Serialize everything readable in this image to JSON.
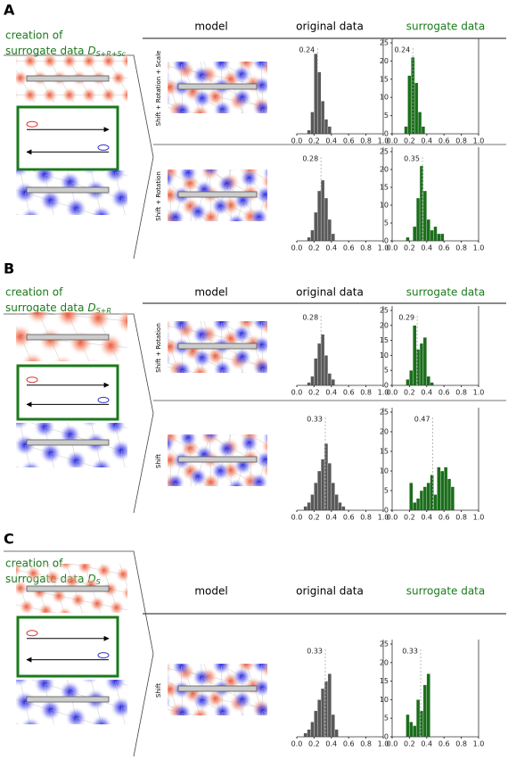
{
  "histogram_axes": {
    "xlim": [
      0,
      1
    ],
    "xticks": [
      {
        "value": 0,
        "label": "0.0"
      },
      0.2,
      0.4,
      0.6,
      0.8,
      {
        "value": 1,
        "label": "1.0"
      }
    ],
    "ylim": [
      0,
      25
    ],
    "yticks": [
      0,
      5,
      10,
      15,
      20,
      25
    ]
  },
  "panels": [
    {
      "label": "A",
      "title": [
        "creation of",
        "surrogate data"
      ],
      "symbol": "D",
      "subscript": "S+R+Sc",
      "headers": [
        "model",
        "original data",
        "surrogate data"
      ],
      "rows": [
        {
          "label": "Shift + Rotation + Scale",
          "original": {
            "type": "histogram",
            "color": "#595959",
            "bins": [
              0.12,
              0.16,
              0.2,
              0.24,
              0.28,
              0.32,
              0.36,
              0.4
            ],
            "counts": [
              1,
              6,
              22,
              17,
              9,
              4,
              2
            ],
            "median": 0.24
          },
          "surrogate": {
            "type": "histogram",
            "color": "#1b6e1b",
            "bins": [
              0.14,
              0.18,
              0.22,
              0.26,
              0.3,
              0.34,
              0.38
            ],
            "counts": [
              2,
              16,
              21,
              14,
              6,
              2
            ],
            "median": 0.24
          }
        },
        {
          "label": "Shift + Rotation",
          "original": {
            "type": "histogram",
            "color": "#595959",
            "bins": [
              0.12,
              0.16,
              0.2,
              0.24,
              0.28,
              0.32,
              0.36,
              0.4,
              0.44
            ],
            "counts": [
              1,
              3,
              8,
              14,
              17,
              12,
              6,
              2
            ],
            "median": 0.28
          },
          "surrogate": {
            "type": "histogram",
            "color": "#1b6e1b",
            "bins": [
              0.16,
              0.2,
              0.24,
              0.28,
              0.32,
              0.36,
              0.4,
              0.44,
              0.48,
              0.52,
              0.56,
              0.6
            ],
            "counts": [
              1,
              0,
              4,
              12,
              21,
              14,
              6,
              3,
              4,
              2,
              2
            ],
            "median": 0.35
          }
        }
      ]
    },
    {
      "label": "B",
      "title": [
        "creation of",
        "surrogate data"
      ],
      "symbol": "D",
      "subscript": "S+R",
      "headers": [
        "model",
        "original data",
        "surrogate data"
      ],
      "rows": [
        {
          "label": "Shift + Rotation",
          "original": {
            "type": "histogram",
            "color": "#595959",
            "bins": [
              0.12,
              0.16,
              0.2,
              0.24,
              0.28,
              0.32,
              0.36,
              0.4,
              0.44
            ],
            "counts": [
              1,
              3,
              9,
              14,
              17,
              10,
              4,
              2
            ],
            "median": 0.28
          },
          "surrogate": {
            "type": "histogram",
            "color": "#1b6e1b",
            "bins": [
              0.16,
              0.2,
              0.24,
              0.28,
              0.32,
              0.36,
              0.4,
              0.44,
              0.48
            ],
            "counts": [
              2,
              5,
              20,
              12,
              14,
              16,
              3,
              1
            ],
            "median": 0.29
          }
        },
        {
          "label": "Shift",
          "original": {
            "type": "histogram",
            "color": "#595959",
            "bins": [
              0.08,
              0.12,
              0.16,
              0.2,
              0.24,
              0.28,
              0.32,
              0.36,
              0.4,
              0.44,
              0.48,
              0.52,
              0.56
            ],
            "counts": [
              1,
              2,
              4,
              7,
              10,
              13,
              17,
              12,
              7,
              4,
              2,
              1
            ],
            "median": 0.33
          },
          "surrogate": {
            "type": "histogram",
            "color": "#1b6e1b",
            "bins": [
              0.2,
              0.24,
              0.28,
              0.32,
              0.36,
              0.4,
              0.44,
              0.48,
              0.52,
              0.56,
              0.6,
              0.64,
              0.68,
              0.72
            ],
            "counts": [
              7,
              2,
              3,
              5,
              6,
              7,
              9,
              4,
              11,
              10,
              11,
              8,
              6
            ],
            "median": 0.47
          }
        }
      ]
    },
    {
      "label": "C",
      "title": [
        "creation of",
        "surrogate data"
      ],
      "symbol": "D",
      "subscript": "S",
      "headers": [
        "model",
        "original data",
        "surrogate data"
      ],
      "rows": [
        {
          "label": "Shift",
          "original": {
            "type": "histogram",
            "color": "#595959",
            "bins": [
              0.08,
              0.12,
              0.16,
              0.2,
              0.24,
              0.28,
              0.32,
              0.36,
              0.4,
              0.44,
              0.48
            ],
            "counts": [
              1,
              2,
              4,
              7,
              10,
              13,
              15,
              17,
              6,
              2
            ],
            "median": 0.33
          },
          "surrogate": {
            "type": "histogram",
            "color": "#1b6e1b",
            "bins": [
              0.16,
              0.2,
              0.24,
              0.28,
              0.32,
              0.36,
              0.4,
              0.44
            ],
            "counts": [
              6,
              4,
              3,
              10,
              7,
              14,
              17
            ],
            "median": 0.33
          }
        }
      ]
    }
  ]
}
